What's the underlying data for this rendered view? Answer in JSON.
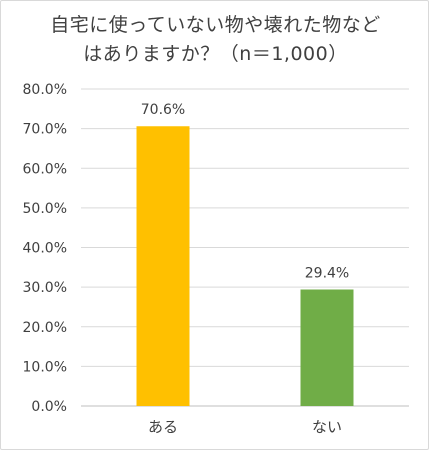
{
  "chart_data": {
    "type": "bar",
    "title": "自宅に使っていない物や壊れた物など\nはありますか？（n＝1,000）",
    "categories": [
      "ある",
      "ない"
    ],
    "values": [
      70.6,
      29.4
    ],
    "data_labels": [
      "70.6%",
      "29.4%"
    ],
    "bar_colors": [
      "#FFC000",
      "#70AD47"
    ],
    "ylim": [
      0,
      80
    ],
    "yticks": [
      0,
      10,
      20,
      30,
      40,
      50,
      60,
      70,
      80
    ],
    "ytick_labels": [
      "0.0%",
      "10.0%",
      "20.0%",
      "30.0%",
      "40.0%",
      "50.0%",
      "60.0%",
      "70.0%",
      "80.0%"
    ],
    "grid": true,
    "legend": "none"
  }
}
